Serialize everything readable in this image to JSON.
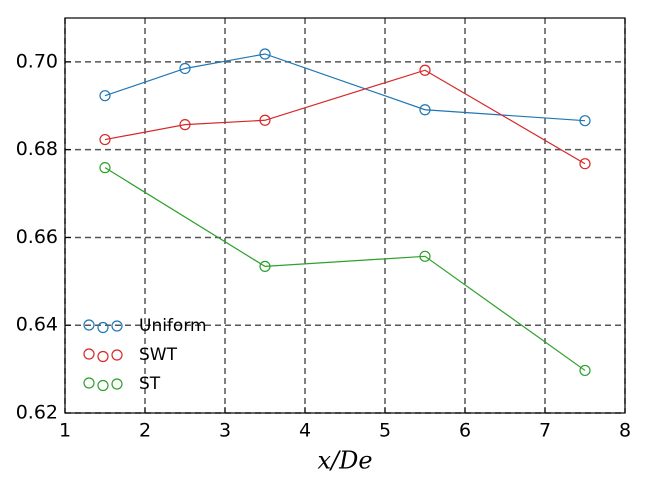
{
  "chart_data": {
    "type": "line",
    "x_label": "x/De",
    "xlim": [
      1,
      8
    ],
    "xticks": [
      1,
      2,
      3,
      4,
      5,
      6,
      7,
      8
    ],
    "ylim": [
      0.62,
      0.71
    ],
    "yticks": [
      0.62,
      0.64,
      0.66,
      0.68,
      {
        "value": 0.7,
        "label": "0.70"
      }
    ],
    "grid": true,
    "legend": "lower left",
    "series": [
      {
        "name": "Uniform",
        "color": "#1f77b4",
        "x": [
          1.5,
          2.5,
          3.5,
          5.5,
          7.5
        ],
        "values": [
          0.6923,
          0.6985,
          0.7018,
          0.6891,
          0.6866
        ]
      },
      {
        "name": "SWT",
        "color": "#d62728",
        "x": [
          1.5,
          2.5,
          3.5,
          5.5,
          7.5
        ],
        "values": [
          0.6823,
          0.6857,
          0.6867,
          0.6981,
          0.6768
        ]
      },
      {
        "name": "ST",
        "color": "#2ca02c",
        "x": [
          1.5,
          3.5,
          5.5,
          7.5
        ],
        "values": [
          0.6759,
          0.6534,
          0.6557,
          0.6297
        ]
      }
    ]
  }
}
